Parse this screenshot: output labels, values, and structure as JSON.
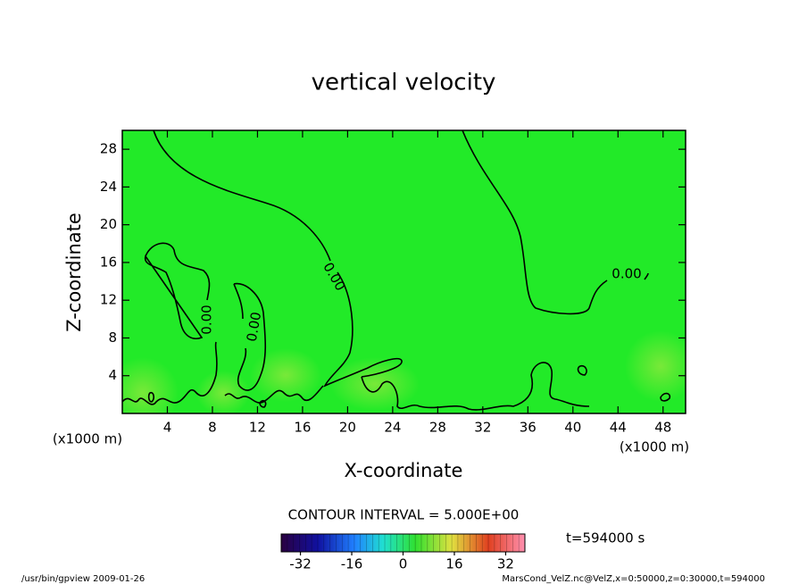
{
  "chart_data": {
    "type": "contour",
    "title": "vertical velocity",
    "xlabel": "X-coordinate",
    "ylabel": "Z-coordinate",
    "x_unit": "(x1000 m)",
    "y_unit": "(x1000 m)",
    "xlim": [
      0,
      50
    ],
    "ylim": [
      0,
      30
    ],
    "xticks": [
      4,
      8,
      12,
      16,
      20,
      24,
      28,
      32,
      36,
      40,
      44,
      48
    ],
    "yticks": [
      4,
      8,
      12,
      16,
      20,
      24,
      28
    ],
    "fill_color": "#22ea28",
    "contour_labels": [
      {
        "value": 0,
        "label": "0.00"
      },
      {
        "value": 0,
        "label": "0.00"
      },
      {
        "value": 0,
        "label": "0.00"
      },
      {
        "value": 0,
        "label": "0.00"
      }
    ],
    "contour_interval": "CONTOUR INTERVAL = 5.000E+00",
    "time": "t=594000 s",
    "colorbar": {
      "lim": [
        -38,
        38
      ],
      "ticks": [
        -32,
        -16,
        0,
        16,
        32
      ]
    },
    "footer_left": "/usr/bin/gpview   2009-01-26",
    "footer_right": "MarsCond_VelZ.nc@VelZ,x=0:50000,z=0:30000,t=594000"
  }
}
